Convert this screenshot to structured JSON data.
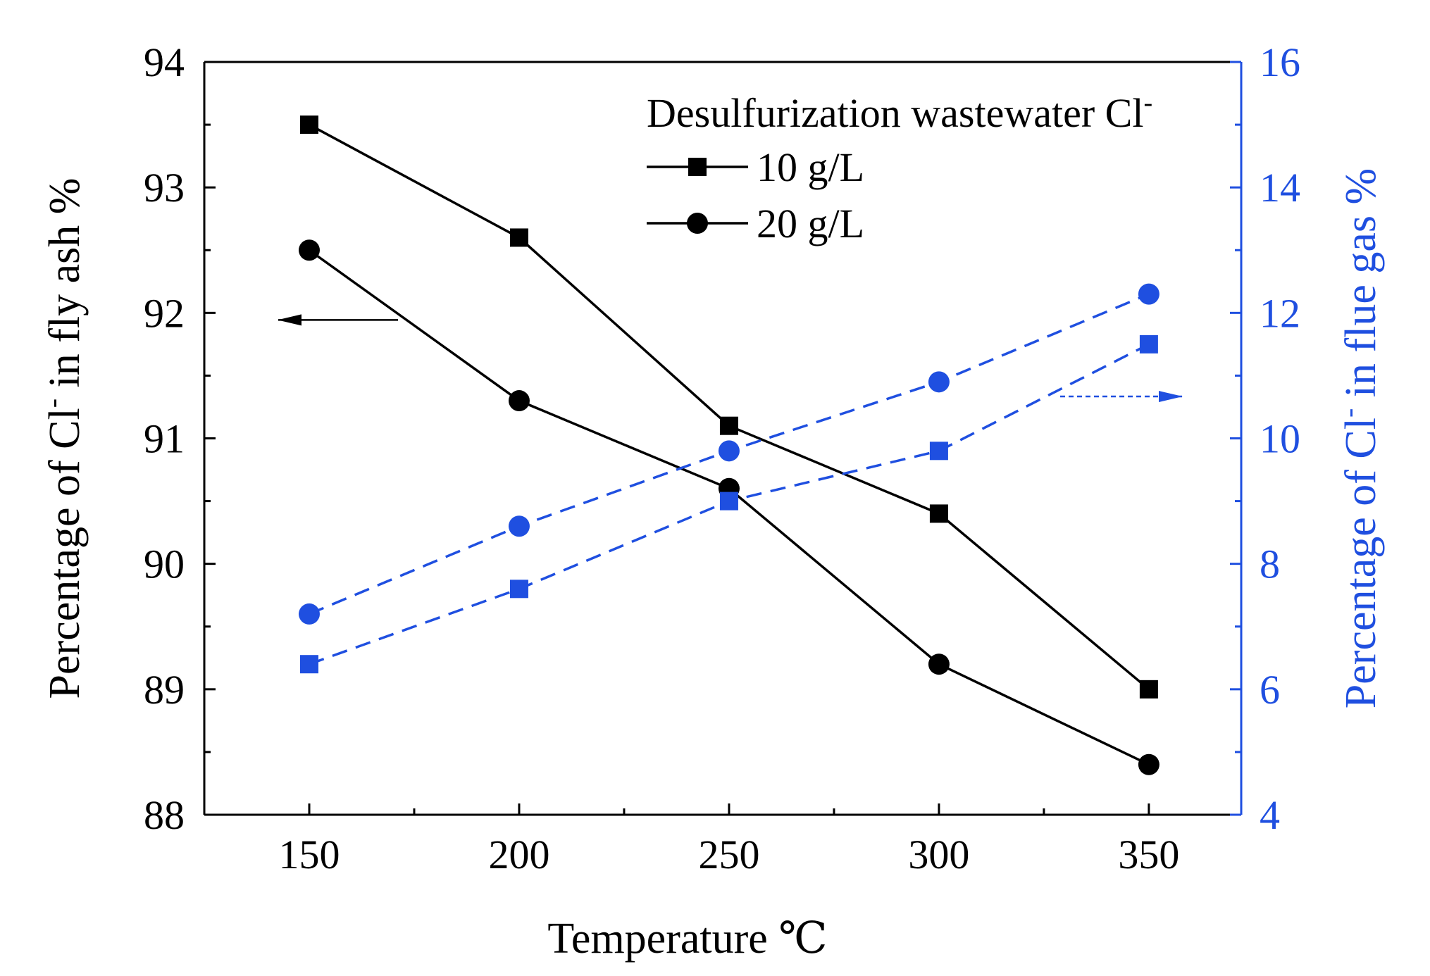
{
  "colors": {
    "left_series": "#000000",
    "right_series": "#1f4fe0",
    "right_axis": "#1f4fe0"
  },
  "chart_data": {
    "type": "line",
    "x": [
      150,
      200,
      250,
      300,
      350
    ],
    "xlabel": "Temperature ℃",
    "xlim": [
      125,
      372
    ],
    "xticks": [
      150,
      200,
      250,
      300,
      350
    ],
    "xtick_labels": [
      "150",
      "200",
      "250",
      "300",
      "350"
    ],
    "ylabel_left": {
      "prefix": "Percentage of Cl",
      "sup": "-",
      "suffix": " in fly ash %"
    },
    "ylim_left": [
      88,
      94
    ],
    "yticks_left": [
      88,
      89,
      90,
      91,
      92,
      93,
      94
    ],
    "ytick_labels_left": [
      "88",
      "89",
      "90",
      "91",
      "92",
      "93",
      "94"
    ],
    "ylabel_right": {
      "prefix": "Percentage of Cl",
      "sup": "-",
      "suffix": " in flue gas %"
    },
    "ylim_right": [
      4,
      16
    ],
    "yticks_right": [
      4,
      6,
      8,
      10,
      12,
      14,
      16
    ],
    "ytick_labels_right": [
      "4",
      "6",
      "8",
      "10",
      "12",
      "14",
      "16"
    ],
    "legend": {
      "title_prefix": "Desulfurization wastewater Cl",
      "title_sup": "-",
      "placement": "top-right",
      "entries": [
        {
          "label": "10 g/L",
          "marker": "square"
        },
        {
          "label": "20 g/L",
          "marker": "circle"
        }
      ]
    },
    "series": [
      {
        "name": "10 g/L",
        "axis": "left",
        "marker": "square",
        "style": "solid",
        "values": [
          93.5,
          92.6,
          91.1,
          90.4,
          89.0
        ]
      },
      {
        "name": "20 g/L",
        "axis": "left",
        "marker": "circle",
        "style": "solid",
        "values": [
          92.5,
          91.3,
          90.6,
          89.2,
          88.4
        ]
      },
      {
        "name": "10 g/L",
        "axis": "right",
        "marker": "square",
        "style": "dashed",
        "values": [
          6.4,
          7.6,
          9.0,
          9.8,
          11.5
        ]
      },
      {
        "name": "20 g/L",
        "axis": "right",
        "marker": "circle",
        "style": "dashed",
        "values": [
          7.2,
          8.6,
          9.8,
          10.9,
          12.3
        ]
      }
    ],
    "annotations": [
      {
        "type": "arrow",
        "points_to": "left axis",
        "at_value": 92
      },
      {
        "type": "arrow",
        "points_to": "right axis",
        "at_value": 10.6
      }
    ]
  }
}
